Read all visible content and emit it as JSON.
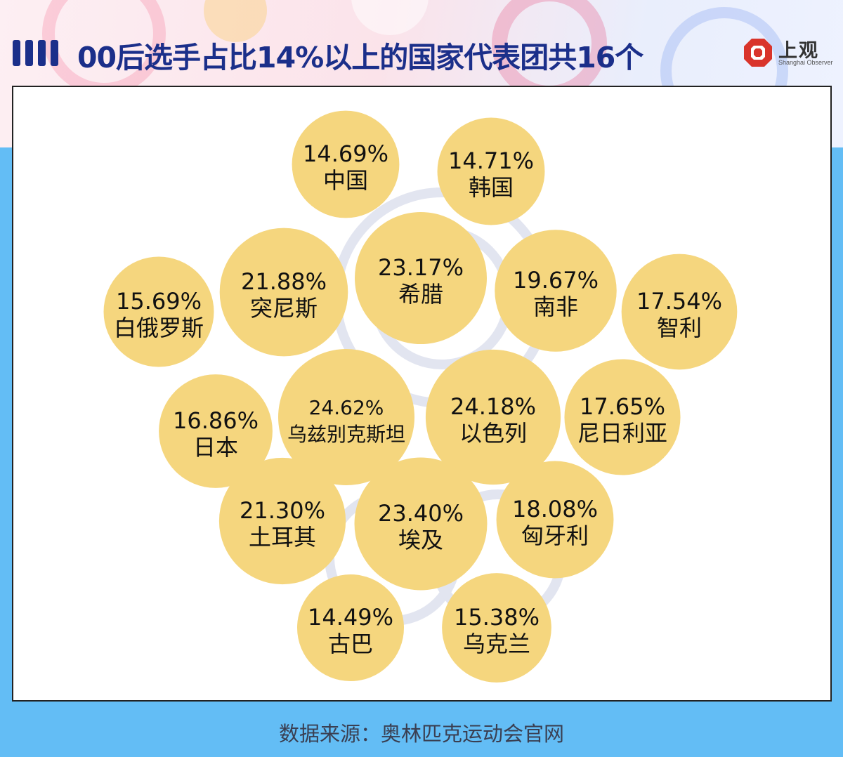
{
  "header": {
    "title": "00后选手占比14%以上的国家代表团共16个",
    "logo_name": "上观",
    "logo_sub": "Shanghai Observer"
  },
  "footer": {
    "source": "数据来源：奥林匹克运动会官网"
  },
  "colors": {
    "bubble": "#f5d67e",
    "title": "#1b2f8a",
    "background": "#63bdf5",
    "logo_red": "#d9342b"
  },
  "chart_data": {
    "type": "bubble",
    "title": "00后选手占比14%以上的国家代表团共16个",
    "unit": "%",
    "items": [
      {
        "name": "中国",
        "value": 14.69,
        "label": "14.69%"
      },
      {
        "name": "韩国",
        "value": 14.71,
        "label": "14.71%"
      },
      {
        "name": "突尼斯",
        "value": 21.88,
        "label": "21.88%"
      },
      {
        "name": "希腊",
        "value": 23.17,
        "label": "23.17%"
      },
      {
        "name": "南非",
        "value": 19.67,
        "label": "19.67%"
      },
      {
        "name": "白俄罗斯",
        "value": 15.69,
        "label": "15.69%"
      },
      {
        "name": "智利",
        "value": 17.54,
        "label": "17.54%"
      },
      {
        "name": "日本",
        "value": 16.86,
        "label": "16.86%"
      },
      {
        "name": "乌兹别克斯坦",
        "value": 24.62,
        "label": "24.62%"
      },
      {
        "name": "以色列",
        "value": 24.18,
        "label": "24.18%"
      },
      {
        "name": "尼日利亚",
        "value": 17.65,
        "label": "17.65%"
      },
      {
        "name": "土耳其",
        "value": 21.3,
        "label": "21.30%"
      },
      {
        "name": "埃及",
        "value": 23.4,
        "label": "23.40%"
      },
      {
        "name": "匈牙利",
        "value": 18.08,
        "label": "18.08%"
      },
      {
        "name": "古巴",
        "value": 14.49,
        "label": "14.49%"
      },
      {
        "name": "乌克兰",
        "value": 15.38,
        "label": "15.38%"
      }
    ]
  }
}
